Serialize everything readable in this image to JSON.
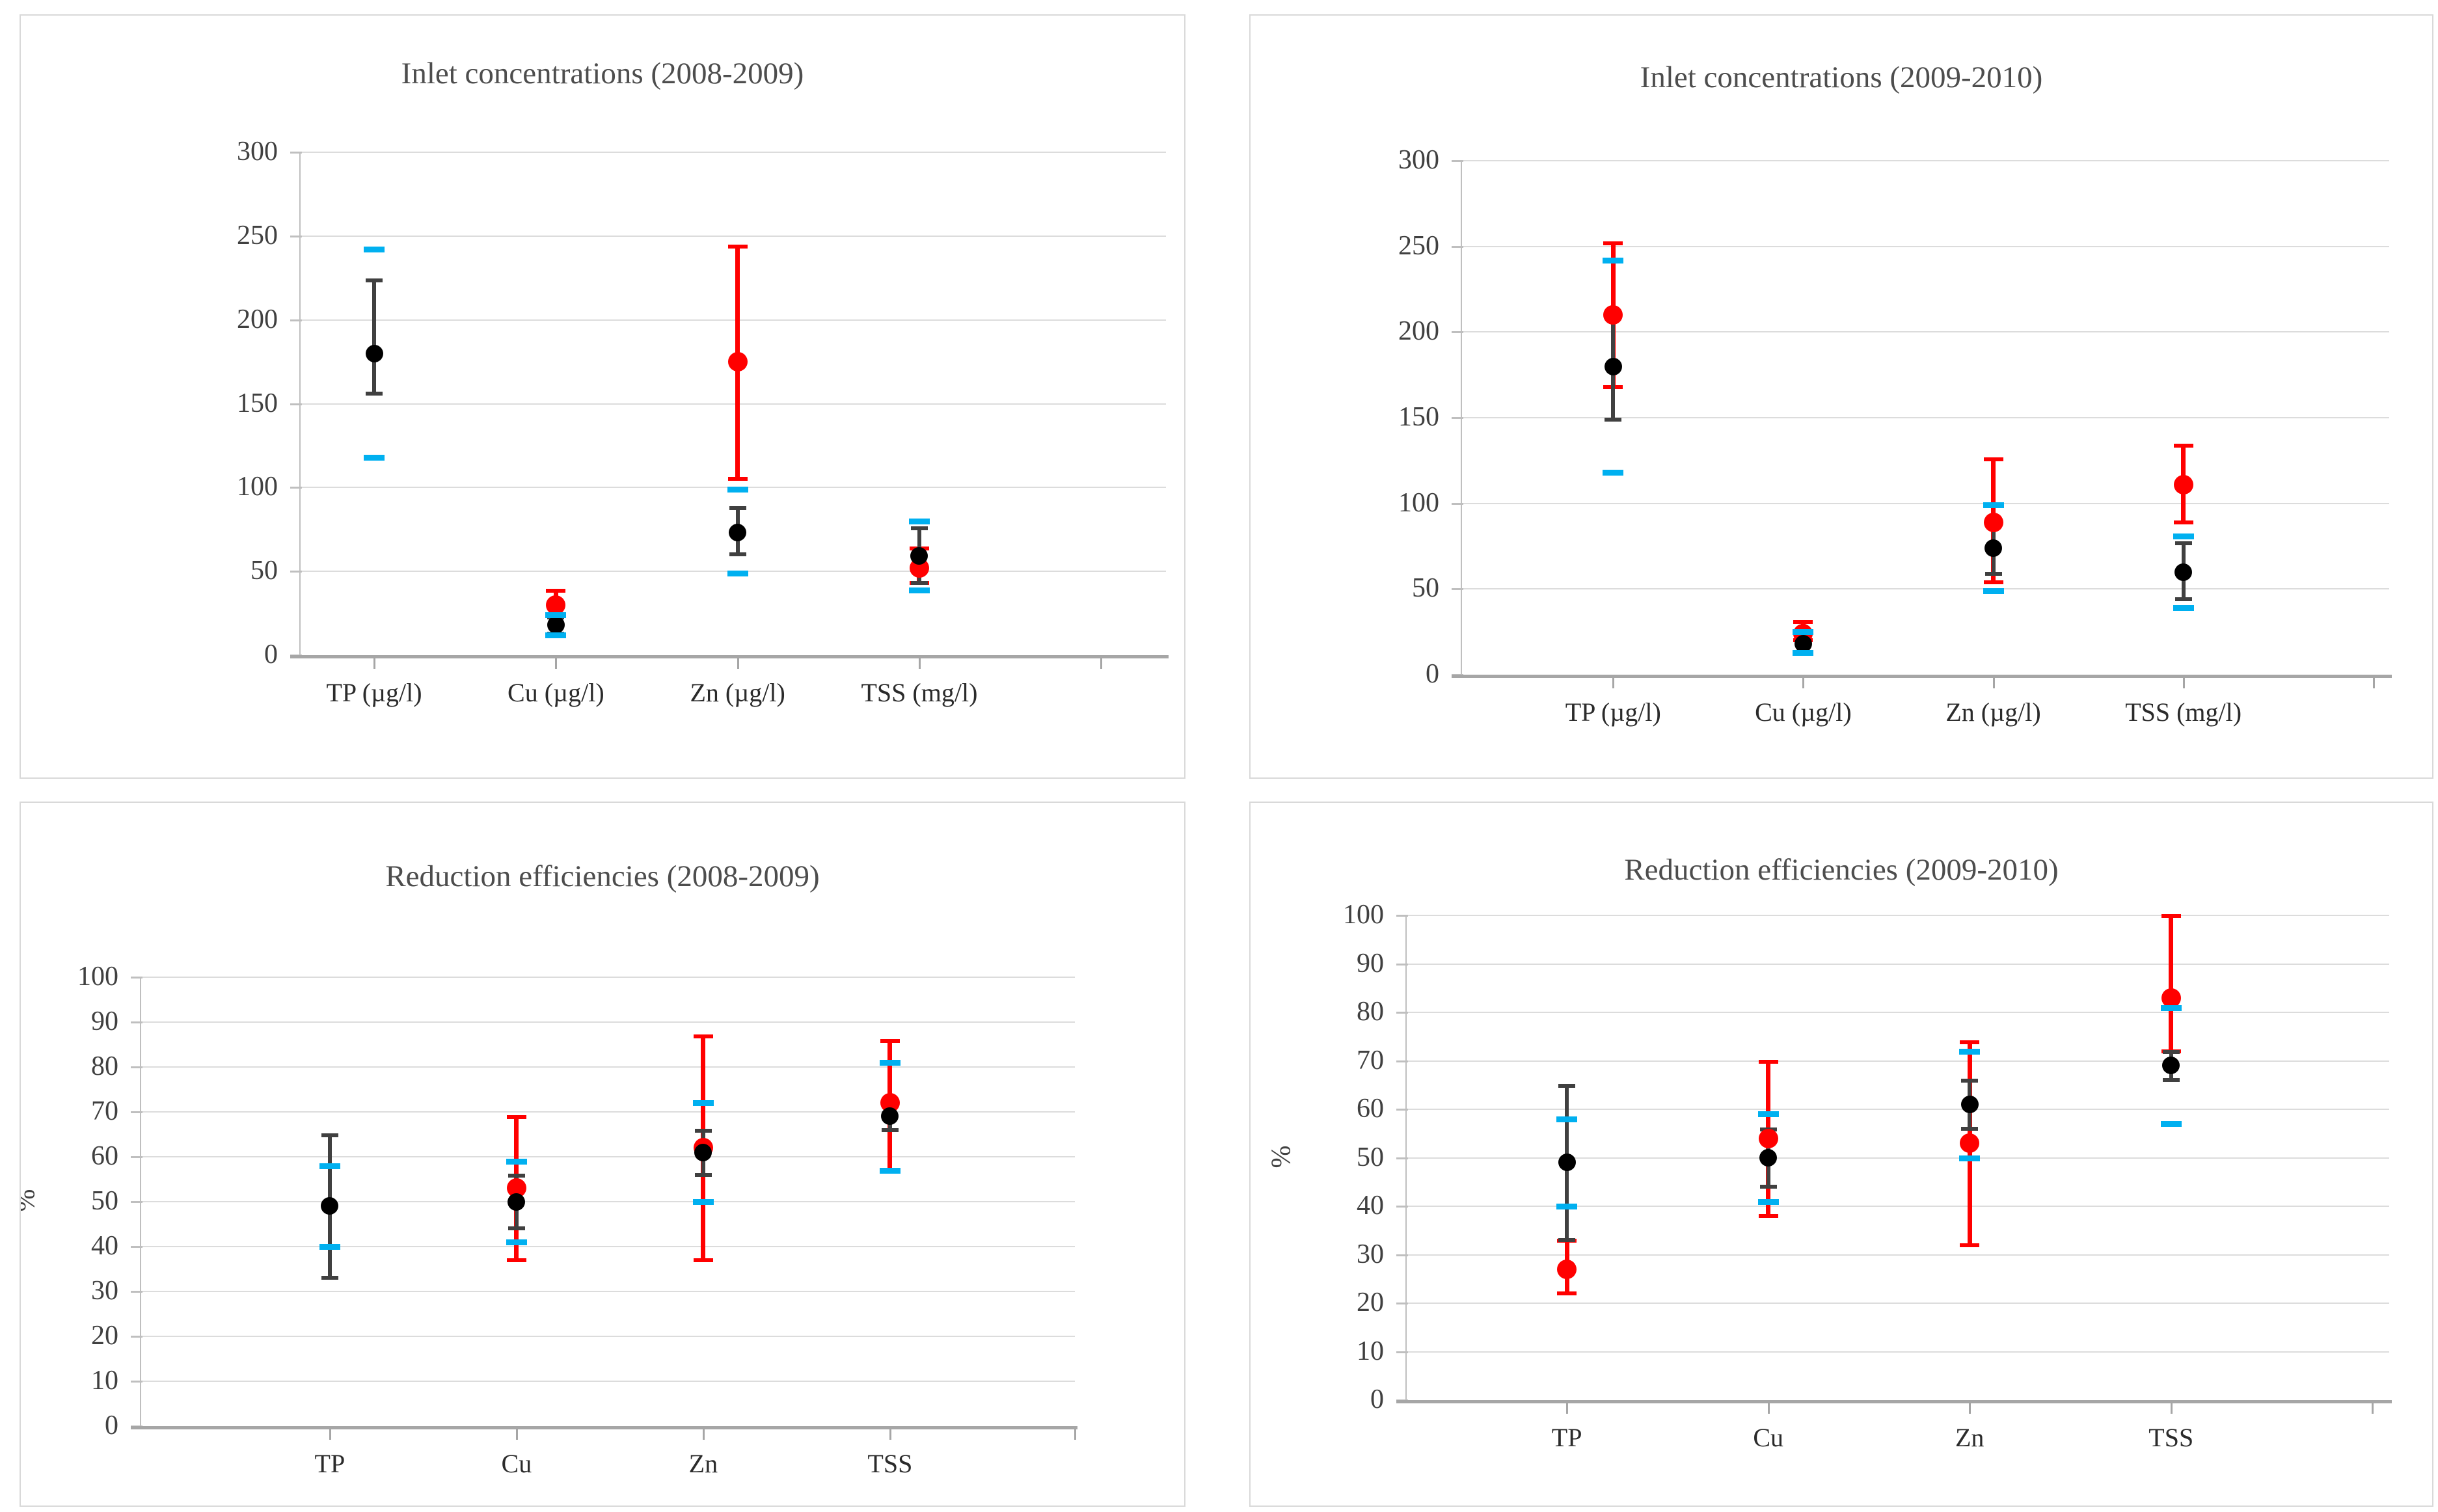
{
  "figure": {
    "description_visible_text_only": "Four error-bar charts in a 2x2 grid",
    "background": "#ffffff"
  },
  "colors": {
    "black_series": "#000000",
    "black_errorbar": "#404040",
    "black_errorcap": "#595959",
    "red_series": "#ff0000",
    "cyan_series": "#00b0f0",
    "gridline": "#dcdcdc",
    "axis": "#a6a6a6",
    "panel_border": "#d9d9d9",
    "title_text": "#4d4d4d",
    "tick_text": "#404040"
  },
  "chart_data": [
    {
      "type": "scatter",
      "title": "Inlet concentrations (2008-2009)",
      "xlabel": "",
      "ylabel": "",
      "grid": true,
      "legend": false,
      "y_axis": {
        "min": 0,
        "max": 300,
        "step": 50,
        "ticks": [
          300,
          250,
          200,
          150,
          100,
          50,
          0
        ],
        "label": ""
      },
      "points": [
        {
          "category": "TP (µg/l)",
          "black": {
            "value": 180,
            "low": 156,
            "high": 224
          },
          "red": null,
          "cyan_high": 242,
          "cyan_low": 118
        },
        {
          "category": "Cu (µg/l)",
          "black": {
            "value": 18,
            "low": 13,
            "high": 23
          },
          "red": {
            "value": 30,
            "low": 24,
            "high": 39
          },
          "cyan_high": 24,
          "cyan_low": 12
        },
        {
          "category": "Zn (µg/l)",
          "black": {
            "value": 73,
            "low": 60,
            "high": 88
          },
          "red": {
            "value": 175,
            "low": 105,
            "high": 244
          },
          "cyan_high": 99,
          "cyan_low": 49
        },
        {
          "category": "TSS (mg/l)",
          "black": {
            "value": 59,
            "low": 43,
            "high": 76
          },
          "red": {
            "value": 52,
            "low": 43,
            "high": 64
          },
          "cyan_high": 80,
          "cyan_low": 39
        }
      ]
    },
    {
      "type": "scatter",
      "title": "Inlet concentrations (2009-2010)",
      "xlabel": "",
      "ylabel": "",
      "grid": true,
      "legend": false,
      "y_axis": {
        "min": 0,
        "max": 300,
        "step": 50,
        "ticks": [
          300,
          250,
          200,
          150,
          100,
          50,
          0
        ],
        "label": ""
      },
      "points": [
        {
          "category": "TP (µg/l)",
          "black": {
            "value": 180,
            "low": 149,
            "high": 211
          },
          "red": {
            "value": 210,
            "low": 168,
            "high": 252
          },
          "cyan_high": 242,
          "cyan_low": 118
        },
        {
          "category": "Cu (µg/l)",
          "black": {
            "value": 18,
            "low": 13,
            "high": 23
          },
          "red": {
            "value": 24,
            "low": 20,
            "high": 31
          },
          "cyan_high": 25,
          "cyan_low": 13
        },
        {
          "category": "Zn (µg/l)",
          "black": {
            "value": 74,
            "low": 59,
            "high": 88
          },
          "red": {
            "value": 89,
            "low": 54,
            "high": 126
          },
          "cyan_high": 99,
          "cyan_low": 49
        },
        {
          "category": "TSS (mg/l)",
          "black": {
            "value": 60,
            "low": 44,
            "high": 77
          },
          "red": {
            "value": 111,
            "low": 89,
            "high": 134
          },
          "cyan_high": 81,
          "cyan_low": 39
        }
      ]
    },
    {
      "type": "scatter",
      "title": "Reduction efficiencies (2008-2009)",
      "xlabel": "",
      "ylabel": "%",
      "grid": true,
      "legend": false,
      "y_axis": {
        "min": 0,
        "max": 100,
        "step": 10,
        "ticks": [
          100,
          90,
          80,
          70,
          60,
          50,
          40,
          30,
          20,
          10,
          0
        ],
        "label": "%"
      },
      "points": [
        {
          "category": "TP",
          "black": {
            "value": 49,
            "low": 33,
            "high": 65
          },
          "red": null,
          "cyan_high": 58,
          "cyan_low": 40
        },
        {
          "category": "Cu",
          "black": {
            "value": 50,
            "low": 44,
            "high": 56
          },
          "red": {
            "value": 53,
            "low": 37,
            "high": 69
          },
          "cyan_high": 59,
          "cyan_low": 41
        },
        {
          "category": "Zn",
          "black": {
            "value": 61,
            "low": 56,
            "high": 66
          },
          "red": {
            "value": 62,
            "low": 37,
            "high": 87
          },
          "cyan_high": 72,
          "cyan_low": 50
        },
        {
          "category": "TSS",
          "black": {
            "value": 69,
            "low": 66,
            "high": 72
          },
          "red": {
            "value": 72,
            "low": 57,
            "high": 86
          },
          "cyan_high": 81,
          "cyan_low": 57
        }
      ]
    },
    {
      "type": "scatter",
      "title": "Reduction efficiencies (2009-2010)",
      "xlabel": "",
      "ylabel": "%",
      "grid": true,
      "legend": false,
      "y_axis": {
        "min": 0,
        "max": 100,
        "step": 10,
        "ticks": [
          100,
          90,
          80,
          70,
          60,
          50,
          40,
          30,
          20,
          10,
          0
        ],
        "label": "%"
      },
      "points": [
        {
          "category": "TP",
          "black": {
            "value": 49,
            "low": 33,
            "high": 65
          },
          "red": {
            "value": 27,
            "low": 22,
            "high": 33
          },
          "cyan_high": 58,
          "cyan_low": 40
        },
        {
          "category": "Cu",
          "black": {
            "value": 50,
            "low": 44,
            "high": 56
          },
          "red": {
            "value": 54,
            "low": 38,
            "high": 70
          },
          "cyan_high": 59,
          "cyan_low": 41
        },
        {
          "category": "Zn",
          "black": {
            "value": 61,
            "low": 56,
            "high": 66
          },
          "red": {
            "value": 53,
            "low": 32,
            "high": 74
          },
          "cyan_high": 72,
          "cyan_low": 50
        },
        {
          "category": "TSS",
          "black": {
            "value": 69,
            "low": 66,
            "high": 72
          },
          "red": {
            "value": 83,
            "low": 72,
            "high": 100
          },
          "cyan_high": 81,
          "cyan_low": 57
        }
      ]
    }
  ]
}
